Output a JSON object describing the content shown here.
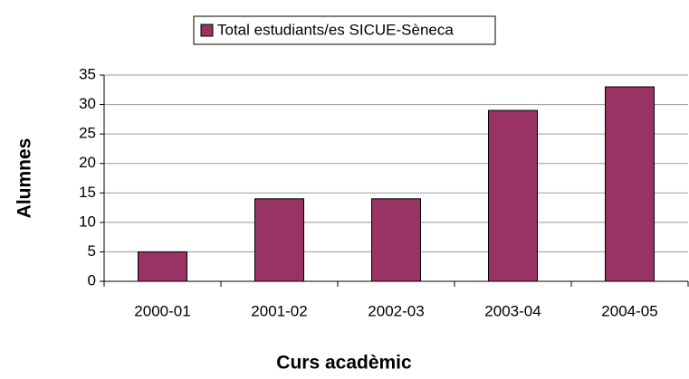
{
  "chart_data": {
    "type": "bar",
    "categories": [
      "2000-01",
      "2001-02",
      "2002-03",
      "2003-04",
      "2004-05"
    ],
    "series": [
      {
        "name": "Total estudiants/es SICUE-Sèneca",
        "color": "#993366",
        "values": [
          5,
          14,
          14,
          29,
          33
        ]
      }
    ],
    "xlabel": "Curs acadèmic",
    "ylabel": "Alumnes",
    "ylim": [
      0,
      35
    ],
    "yticks": [
      0,
      5,
      10,
      15,
      20,
      25,
      30,
      35
    ],
    "grid": true,
    "legend": "top"
  }
}
